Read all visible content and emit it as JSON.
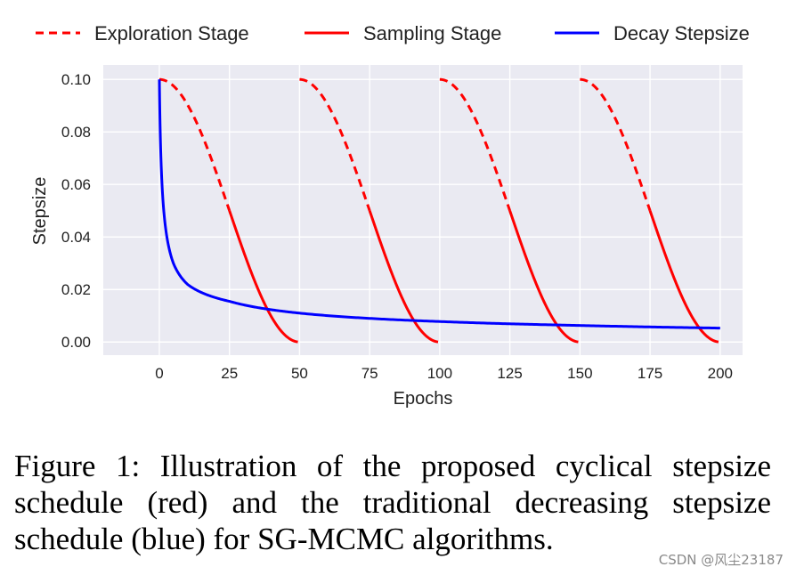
{
  "chart_data": {
    "type": "line",
    "xlabel": "Epochs",
    "ylabel": "Stepsize",
    "xlim": [
      -20,
      208
    ],
    "ylim": [
      -0.005,
      0.1055
    ],
    "x_ticks": [
      0,
      25,
      50,
      75,
      100,
      125,
      150,
      175,
      200
    ],
    "x_tick_labels": [
      "0",
      "25",
      "50",
      "75",
      "100",
      "125",
      "150",
      "175",
      "200"
    ],
    "y_ticks": [
      0.0,
      0.02,
      0.04,
      0.06,
      0.08,
      0.1
    ],
    "y_tick_labels": [
      "0.00",
      "0.02",
      "0.04",
      "0.06",
      "0.08",
      "0.10"
    ],
    "grid": true,
    "legend_position": "top",
    "colors": {
      "cyclical": "#ff0000",
      "decay": "#0000ff",
      "plot_bg": "#eaeaf2",
      "grid": "#ffffff"
    },
    "cyclical_schedule": {
      "initial_stepsize": 0.1,
      "cycle_length": 50,
      "num_cycles": 4,
      "exploration_fraction": 0.5
    },
    "decay_schedule": {
      "initial_stepsize": 0.1,
      "x_range": [
        0,
        200
      ],
      "approx_values": [
        [
          0,
          0.1
        ],
        [
          5,
          0.03
        ],
        [
          10,
          0.022
        ],
        [
          25,
          0.0155
        ],
        [
          50,
          0.011
        ],
        [
          100,
          0.0078
        ],
        [
          150,
          0.0063
        ],
        [
          200,
          0.0053
        ]
      ]
    },
    "series": [
      {
        "name": "Exploration Stage",
        "style": "dashed",
        "color": "#ff0000"
      },
      {
        "name": "Sampling Stage",
        "style": "solid",
        "color": "#ff0000"
      },
      {
        "name": "Decay Stepsize",
        "style": "solid",
        "color": "#0000ff"
      }
    ]
  },
  "caption": "Figure 1:  Illustration of the proposed cyclical stepsize schedule (red) and the traditional decreasing stepsize schedule (blue) for SG-MCMC algorithms.",
  "watermark": "CSDN @风尘23187"
}
